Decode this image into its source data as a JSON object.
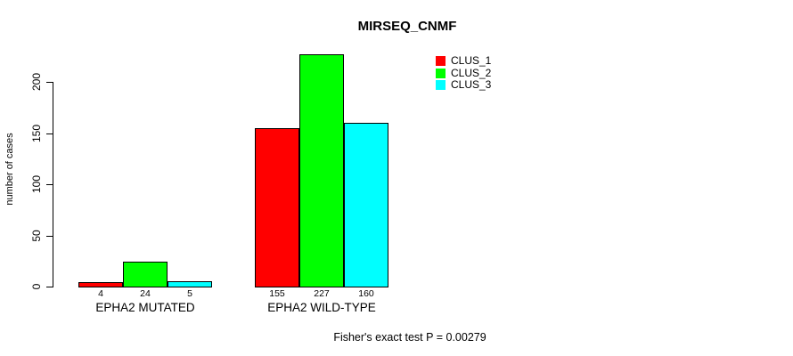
{
  "chart_data": {
    "type": "bar",
    "title": "MIRSEQ_CNMF",
    "xlabel": "",
    "ylabel": "number of cases",
    "ylim": [
      0,
      230
    ],
    "yticks": [
      0,
      50,
      100,
      150,
      200
    ],
    "grid": false,
    "legend_position": "top-right-inside",
    "categories": [
      "EPHA2 MUTATED",
      "EPHA2 WILD-TYPE"
    ],
    "series": [
      {
        "name": "CLUS_1",
        "color": "#ff0000",
        "values": [
          4,
          155
        ]
      },
      {
        "name": "CLUS_2",
        "color": "#00ff00",
        "values": [
          24,
          227
        ]
      },
      {
        "name": "CLUS_3",
        "color": "#00ffff",
        "values": [
          5,
          160
        ]
      }
    ],
    "show_bar_value_labels": true,
    "annotation": "Fisher's exact test P = 0.00279"
  },
  "colors": {
    "background": "#ffffff",
    "axis": "#000000",
    "text": "#000000"
  }
}
